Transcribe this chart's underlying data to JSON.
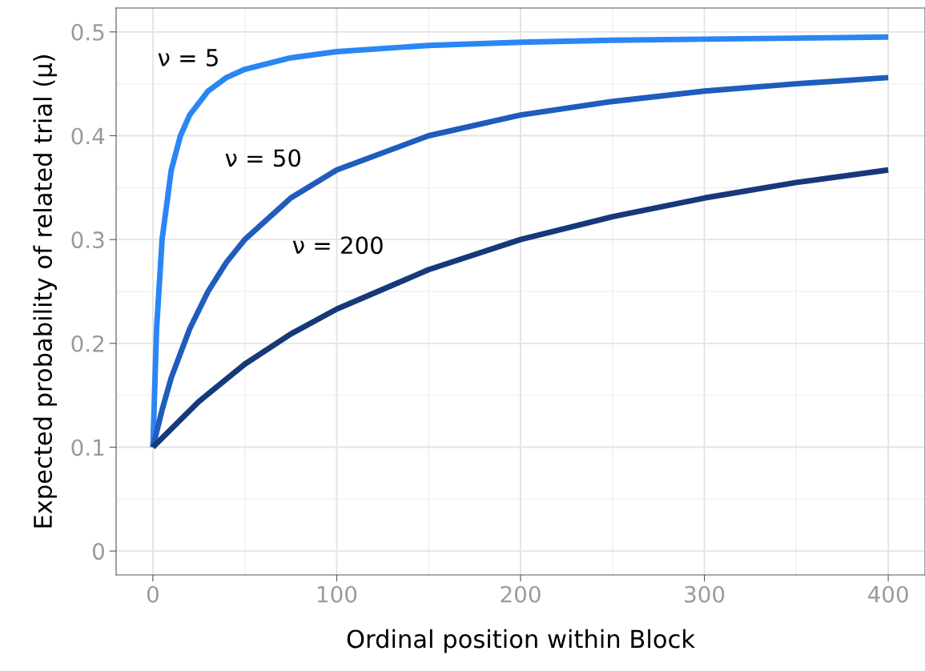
{
  "chart_data": {
    "type": "line",
    "xlabel": "Ordinal position within Block",
    "ylabel": "Expected probability of related trial (μ)",
    "series": [
      {
        "name": "ν = 5",
        "color": "#2a86f5",
        "x": [
          0,
          2,
          5,
          10,
          15,
          20,
          30,
          40,
          50,
          75,
          100,
          150,
          200,
          250,
          300,
          350,
          400
        ],
        "values": [
          0.1,
          0.214,
          0.3,
          0.367,
          0.4,
          0.42,
          0.443,
          0.456,
          0.464,
          0.475,
          0.481,
          0.487,
          0.49,
          0.492,
          0.493,
          0.494,
          0.495
        ]
      },
      {
        "name": "ν = 50",
        "color": "#1f5cbc",
        "x": [
          0,
          5,
          10,
          20,
          30,
          40,
          50,
          75,
          100,
          150,
          200,
          250,
          300,
          350,
          400
        ],
        "values": [
          0.1,
          0.136,
          0.167,
          0.214,
          0.25,
          0.278,
          0.3,
          0.34,
          0.367,
          0.4,
          0.42,
          0.433,
          0.443,
          0.45,
          0.456
        ]
      },
      {
        "name": "ν = 200",
        "color": "#16397a",
        "x": [
          0,
          25,
          50,
          75,
          100,
          150,
          200,
          250,
          300,
          350,
          400
        ],
        "values": [
          0.1,
          0.144,
          0.18,
          0.209,
          0.233,
          0.271,
          0.3,
          0.322,
          0.34,
          0.355,
          0.367
        ]
      }
    ],
    "xlim": [
      -20,
      420
    ],
    "ylim": [
      -0.023,
      0.523
    ],
    "xticks": [
      0,
      100,
      200,
      300,
      400
    ],
    "yticks": [
      0,
      0.1,
      0.2,
      0.3,
      0.4,
      0.5
    ],
    "grid": true,
    "marker": "none",
    "line_style": "solid"
  }
}
